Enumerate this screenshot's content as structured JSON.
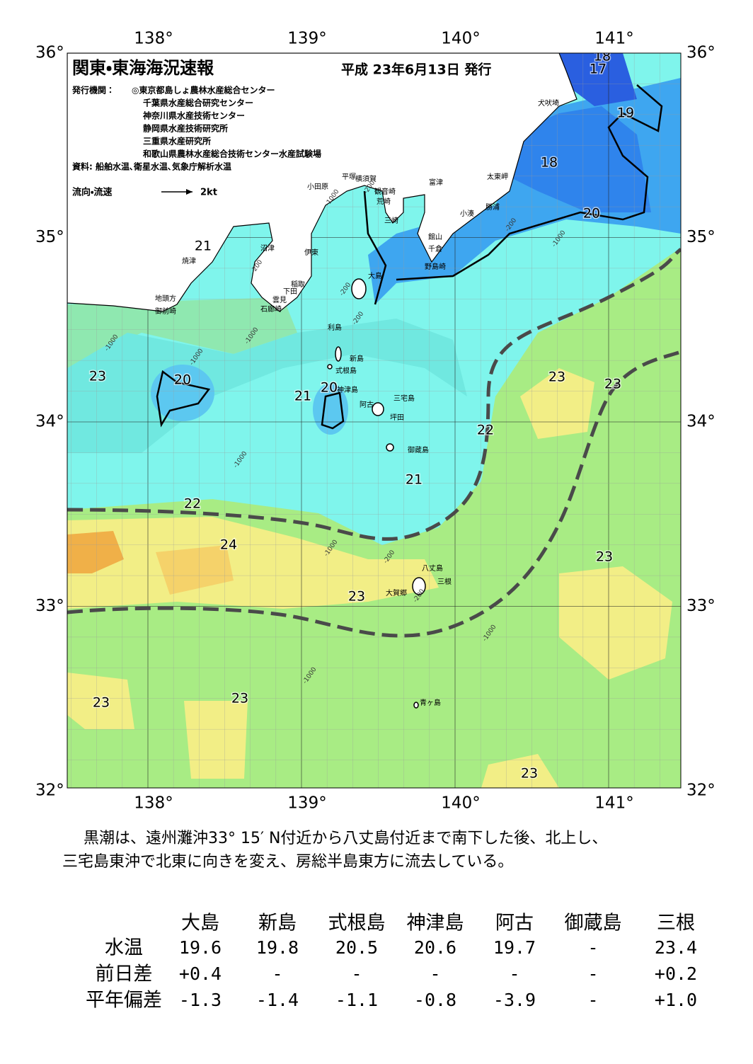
{
  "header": {
    "title": "関東・東海海況速報",
    "date": "平成 23年6月13日 発行",
    "publishers_label": "発行機関：",
    "publishers": [
      "◎東京都島しょ農林水産総合センター",
      "千葉県水産総合研究センター",
      "神奈川県水産技術センター",
      "静岡県水産技術研究所",
      "三重県水産研究所",
      "和歌山県農林水産総合技術センター水産試験場"
    ],
    "source": "資料: 船舶水温､衛星水温､気象庁解析水温",
    "legend_label": "流向・流速",
    "legend_speed": "2kt"
  },
  "map": {
    "lon_labels": [
      "138°",
      "139°",
      "140°",
      "141°"
    ],
    "lat_labels": [
      "36°",
      "35°",
      "34°",
      "33°",
      "32°"
    ],
    "places": [
      "犬吠埼",
      "太東岬",
      "勝浦",
      "小湊",
      "富津",
      "横須賀",
      "観音崎",
      "平塚",
      "荒崎",
      "三崎",
      "小田原",
      "館山",
      "千倉",
      "野島崎",
      "沼津",
      "伊東",
      "焼津",
      "稲取",
      "下田",
      "雲見",
      "石廊崎",
      "地頭方",
      "御前崎",
      "大島",
      "利島",
      "新島",
      "式根島",
      "神津島",
      "三宅島",
      "阿古",
      "坪田",
      "御蔵島",
      "八丈島",
      "三根",
      "大賀郷",
      "青ヶ島"
    ],
    "isotherm_labels": [
      "18",
      "17",
      "19",
      "18",
      "20",
      "21",
      "23",
      "20",
      "21",
      "20",
      "23",
      "23",
      "22",
      "21",
      "22",
      "24",
      "23",
      "23",
      "23",
      "23",
      "23"
    ],
    "depth_labels": [
      "-200",
      "-1000",
      "-200",
      "-1000",
      "-200",
      "-200",
      "-1000",
      "-200",
      "-1000",
      "-1000",
      "-1000",
      "-1000",
      "-200",
      "-1000",
      "-1000",
      "-200"
    ]
  },
  "summary": [
    "黒潮は、遠州灘沖33° 15′ N付近から八丈島付近まで南下した後、北上し、",
    "三宅島東沖で北東に向きを変え、房総半島東方に流去している。"
  ],
  "table": {
    "columns": [
      "大島",
      "新島",
      "式根島",
      "神津島",
      "阿古",
      "御蔵島",
      "三根"
    ],
    "rows": [
      {
        "label": "水温",
        "values": [
          "19.6",
          "19.8",
          "20.5",
          "20.6",
          "19.7",
          "-",
          "23.4"
        ]
      },
      {
        "label": "前日差",
        "values": [
          "+0.4",
          "-",
          "-",
          "-",
          "-",
          "-",
          "+0.2"
        ]
      },
      {
        "label": "平年偏差",
        "values": [
          "-1.3",
          "-1.4",
          "-1.1",
          "-0.8",
          "-3.9",
          "-",
          "+1.0"
        ]
      }
    ]
  }
}
